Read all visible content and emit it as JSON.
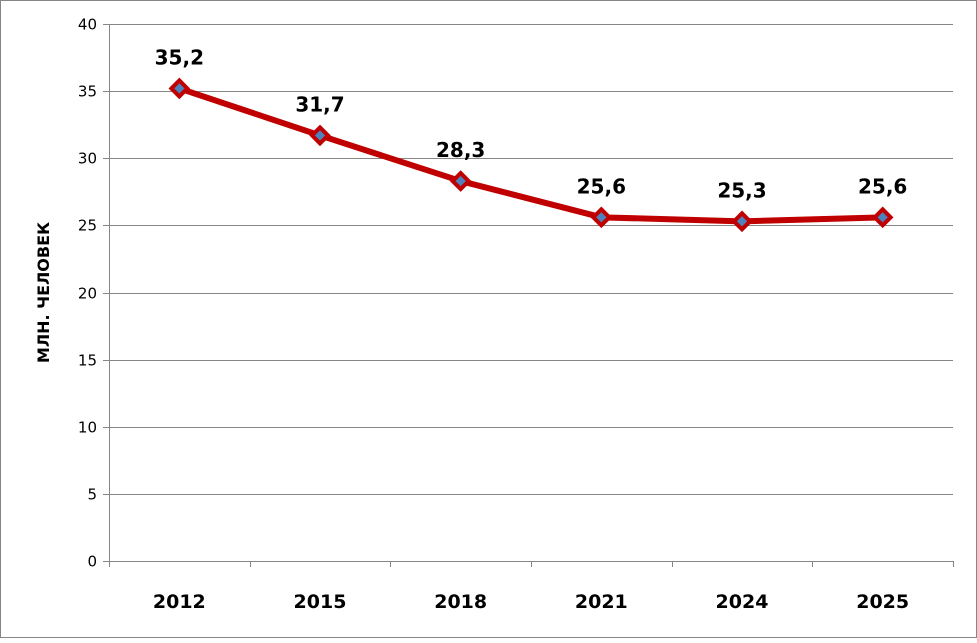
{
  "chart_data": {
    "type": "line",
    "categories": [
      "2012",
      "2015",
      "2018",
      "2021",
      "2024",
      "2025"
    ],
    "series": [
      {
        "values": [
          35.2,
          31.7,
          28.3,
          25.6,
          25.3,
          25.6
        ],
        "data_labels": [
          "35,2",
          "31,7",
          "28,3",
          "25,6",
          "25,3",
          "25,6"
        ]
      }
    ],
    "title": "",
    "xlabel": "",
    "ylabel": "МЛН. ЧЕЛОВЕК",
    "ylim": [
      0,
      40
    ],
    "yticks": [
      0,
      5,
      10,
      15,
      20,
      25,
      30,
      35,
      40
    ],
    "ytick_labels": [
      "0",
      "5",
      "10",
      "15",
      "20",
      "25",
      "30",
      "35",
      "40"
    ],
    "grid": "horizontal",
    "legend": "none",
    "colors": {
      "line": "#C00000",
      "marker_fill": "#4F81BD",
      "marker_edge": "#C00000",
      "grid": "#868686",
      "axis": "#868686",
      "text": "#000000"
    }
  }
}
